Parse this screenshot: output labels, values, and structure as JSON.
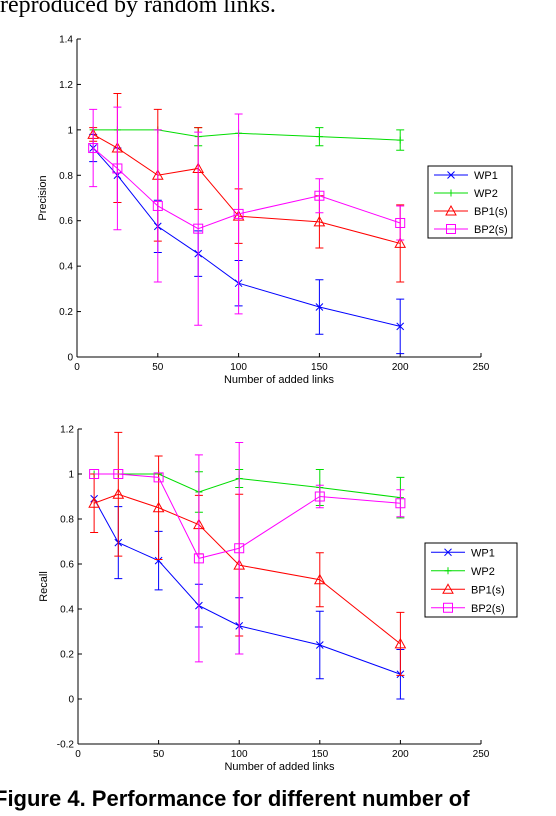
{
  "page": {
    "top_text": "reproduced by random links.",
    "caption": "Figure 4. Performance for different number of"
  },
  "chart_data": [
    {
      "type": "line",
      "title": "",
      "xlabel": "Number of added links",
      "ylabel": "Precision",
      "xlim": [
        0,
        250
      ],
      "ylim": [
        0,
        1.4
      ],
      "xticks": [
        "0",
        "50",
        "100",
        "150",
        "200",
        "250"
      ],
      "yticks": [
        "0",
        "0.2",
        "0.4",
        "0.6",
        "0.8",
        "1",
        "1.2",
        "1.4"
      ],
      "grid": false,
      "legend_position": "right",
      "x": [
        10,
        25,
        50,
        75,
        100,
        150,
        200
      ],
      "series": [
        {
          "name": "WP1",
          "color": "#0000ff",
          "marker": "x",
          "values": [
            0.92,
            0.8,
            0.575,
            0.455,
            0.325,
            0.22,
            0.135
          ],
          "errors": [
            0.06,
            0.12,
            0.115,
            0.1,
            0.1,
            0.12,
            0.12
          ]
        },
        {
          "name": "WP2",
          "color": "#00dd00",
          "marker": "plus",
          "values": [
            1.0,
            1.0,
            1.0,
            0.97,
            0.985,
            0.97,
            0.955
          ],
          "errors": [
            0.0,
            0.0,
            0.0,
            0.04,
            0.0,
            0.04,
            0.045
          ]
        },
        {
          "name": "BP1(s)",
          "color": "#ff0000",
          "marker": "triangle",
          "values": [
            0.98,
            0.92,
            0.8,
            0.83,
            0.62,
            0.595,
            0.5
          ],
          "errors": [
            0.03,
            0.24,
            0.29,
            0.18,
            0.12,
            0.115,
            0.17
          ]
        },
        {
          "name": "BP2(s)",
          "color": "#ff00ff",
          "marker": "square",
          "values": [
            0.92,
            0.83,
            0.665,
            0.565,
            0.63,
            0.71,
            0.59
          ],
          "errors": [
            0.17,
            0.27,
            0.335,
            0.425,
            0.44,
            0.075,
            0.075
          ]
        }
      ]
    },
    {
      "type": "line",
      "title": "",
      "xlabel": "Number of added links",
      "ylabel": "Recall",
      "xlim": [
        0,
        250
      ],
      "ylim": [
        -0.2,
        1.2
      ],
      "xticks": [
        "0",
        "50",
        "100",
        "150",
        "200",
        "250"
      ],
      "yticks": [
        "-0.2",
        "0",
        "0.2",
        "0.4",
        "0.6",
        "0.8",
        "1",
        "1.2"
      ],
      "grid": false,
      "legend_position": "right",
      "x": [
        10,
        25,
        50,
        75,
        100,
        150,
        200
      ],
      "series": [
        {
          "name": "WP1",
          "color": "#0000ff",
          "marker": "x",
          "values": [
            0.89,
            0.695,
            0.615,
            0.415,
            0.325,
            0.24,
            0.11
          ],
          "errors": [
            0.0,
            0.16,
            0.13,
            0.095,
            0.125,
            0.15,
            0.11
          ]
        },
        {
          "name": "WP2",
          "color": "#00dd00",
          "marker": "plus",
          "values": [
            1.0,
            1.0,
            1.0,
            0.92,
            0.98,
            0.94,
            0.895
          ],
          "errors": [
            0.0,
            0.0,
            0.0,
            0.09,
            0.04,
            0.08,
            0.09
          ]
        },
        {
          "name": "BP1(s)",
          "color": "#ff0000",
          "marker": "triangle",
          "values": [
            0.87,
            0.91,
            0.85,
            0.775,
            0.595,
            0.53,
            0.245
          ],
          "errors": [
            0.13,
            0.275,
            0.23,
            0.13,
            0.315,
            0.12,
            0.14
          ]
        },
        {
          "name": "BP2(s)",
          "color": "#ff00ff",
          "marker": "square",
          "values": [
            1.0,
            1.0,
            0.985,
            0.625,
            0.67,
            0.9,
            0.87
          ],
          "errors": [
            0.0,
            0.0,
            0.0,
            0.46,
            0.47,
            0.05,
            0.06
          ]
        }
      ]
    }
  ]
}
